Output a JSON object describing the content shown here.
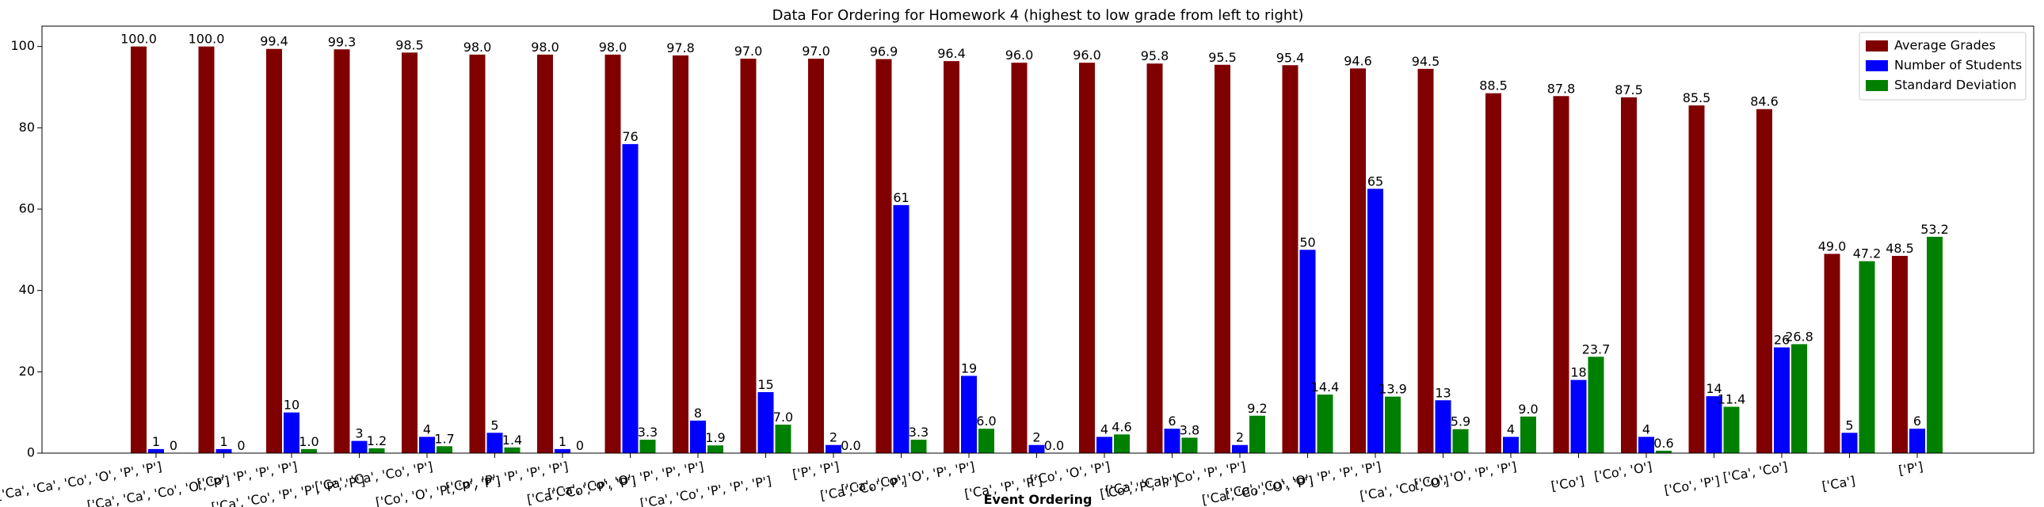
{
  "chart_data": {
    "type": "bar",
    "title": "Data For Ordering for Homework 4 (highest to low grade from left to right)",
    "x_label": "Event Ordering",
    "categories": [
      "['Ca', 'Ca', 'Co', 'O', 'P', 'P']",
      "['Ca', 'Ca', 'Co', 'O', 'P']",
      "['Co', 'P', 'P', 'P']",
      "['Ca', 'Co', 'P', 'P', 'P', 'P']",
      "['Ca', 'Ca', 'Co', 'P']",
      "['Co', 'O', 'P', 'P', 'P']",
      "['Co', 'P', 'P', 'P', 'P']",
      "['Ca', 'Co', 'P', 'P']",
      "['Ca', 'Co', 'O', 'P', 'P', 'P']",
      "['Ca', 'Co', 'P', 'P', 'P']",
      "['P', 'P']",
      "['Ca', 'Co', 'P']",
      "['Ca', 'Co', 'O', 'P', 'P']",
      "['Ca', 'P', 'P']",
      "['Co', 'O', 'P']",
      "['Co', 'P', 'P']",
      "['Ca', 'Ca', 'Co', 'P', 'P']",
      "['Ca', 'Co', 'O', 'P']",
      "['Ca', 'Co', 'O', 'P', 'P', 'P']",
      "['Ca', 'Co', 'O']",
      "['Co', 'O', 'P', 'P']",
      "['Co']",
      "['Co', 'O']",
      "['Co', 'P']",
      "['Ca', 'Co']",
      "['Ca']",
      "['P']"
    ],
    "series": [
      {
        "name": "Average Grades",
        "color": "#800000",
        "values": [
          100.0,
          100.0,
          99.4,
          99.3,
          98.5,
          98.0,
          98.0,
          98.0,
          97.8,
          97.0,
          97.0,
          96.9,
          96.4,
          96.0,
          96.0,
          95.8,
          95.5,
          95.4,
          94.6,
          94.5,
          88.5,
          87.8,
          87.5,
          85.5,
          84.6,
          49.0,
          48.5
        ],
        "value_labels": [
          "100.0",
          "100.0",
          "99.4",
          "99.3",
          "98.5",
          "98.0",
          "98.0",
          "98.0",
          "97.8",
          "97.0",
          "97.0",
          "96.9",
          "96.4",
          "96.0",
          "96.0",
          "95.8",
          "95.5",
          "95.4",
          "94.6",
          "94.5",
          "88.5",
          "87.8",
          "87.5",
          "85.5",
          "84.6",
          "49.0",
          "48.5"
        ]
      },
      {
        "name": "Number of Students",
        "color": "#0000ff",
        "values": [
          1,
          1,
          10,
          3,
          4,
          5,
          1,
          76,
          8,
          15,
          2,
          61,
          19,
          2,
          4,
          6,
          2,
          50,
          65,
          13,
          4,
          18,
          4,
          14,
          26,
          5,
          6
        ]
      },
      {
        "name": "Standard Deviation",
        "color": "#008000",
        "values": [
          0,
          0,
          1.0,
          1.2,
          1.7,
          1.4,
          0,
          3.3,
          1.9,
          7.0,
          0.0,
          3.3,
          6.0,
          0.0,
          4.6,
          3.8,
          9.2,
          14.4,
          13.9,
          5.9,
          9.0,
          23.7,
          0.6,
          11.4,
          26.8,
          47.2,
          53.2
        ],
        "value_labels": [
          "0",
          "0",
          "1.0",
          "1.2",
          "1.7",
          "1.4",
          "0",
          "3.3",
          "1.9",
          "7.0",
          "0.0",
          "3.3",
          "6.0",
          "0.0",
          "4.6",
          "3.8",
          "9.2",
          "14.4",
          "13.9",
          "5.9",
          "9.0",
          "23.7",
          "0.6",
          "11.4",
          "26.8",
          "47.2",
          "53.2"
        ]
      }
    ],
    "ylim": [
      0,
      105
    ],
    "yticks": [
      0,
      20,
      40,
      60,
      80,
      100
    ],
    "legend": "upper right"
  }
}
